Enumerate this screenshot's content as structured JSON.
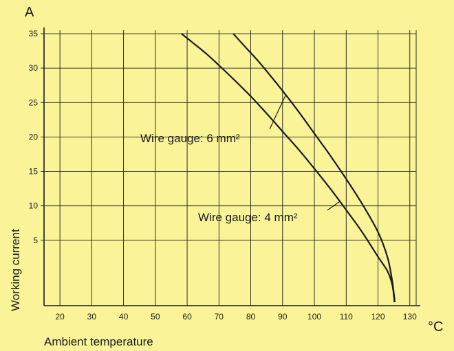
{
  "chart_data": {
    "type": "line",
    "xlabel": "Ambient temperature",
    "ylabel": "Working current",
    "x_unit": "°C",
    "y_unit": "A",
    "xlim": [
      15,
      132
    ],
    "ylim": [
      -4.5,
      35.5
    ],
    "grid": true,
    "x_ticks": [
      20,
      30,
      40,
      50,
      60,
      70,
      80,
      90,
      100,
      110,
      120,
      130
    ],
    "y_ticks": [
      5,
      10,
      15,
      20,
      25,
      30,
      35
    ],
    "series": [
      {
        "name": "Wire gauge: 4 mm²",
        "x": [
          58.2,
          62,
          66,
          70,
          75,
          80,
          85,
          90,
          95,
          100,
          105,
          110,
          115,
          120,
          123,
          124.5,
          125.2
        ],
        "y": [
          35,
          33.6,
          32.1,
          30.4,
          28.2,
          25.9,
          23.4,
          20.8,
          18.2,
          15.4,
          12.5,
          9.4,
          6.2,
          2.6,
          0.5,
          -1.5,
          -4
        ]
      },
      {
        "name": "Wire gauge: 6 mm²",
        "x": [
          74.5,
          78,
          82,
          86,
          90,
          95,
          100,
          105,
          110,
          115,
          120,
          123,
          124.5,
          125.3
        ],
        "y": [
          35,
          33.2,
          31.2,
          29,
          26.7,
          23.7,
          20.5,
          17.3,
          13.9,
          10.3,
          6.2,
          2.5,
          -1,
          -4
        ]
      }
    ],
    "annotations": [
      {
        "text": "Wire gauge: 6 mm²",
        "series": "Wire gauge: 6 mm²"
      },
      {
        "text": "Wire gauge: 4 mm²",
        "series": "Wire gauge: 4 mm²"
      }
    ]
  }
}
